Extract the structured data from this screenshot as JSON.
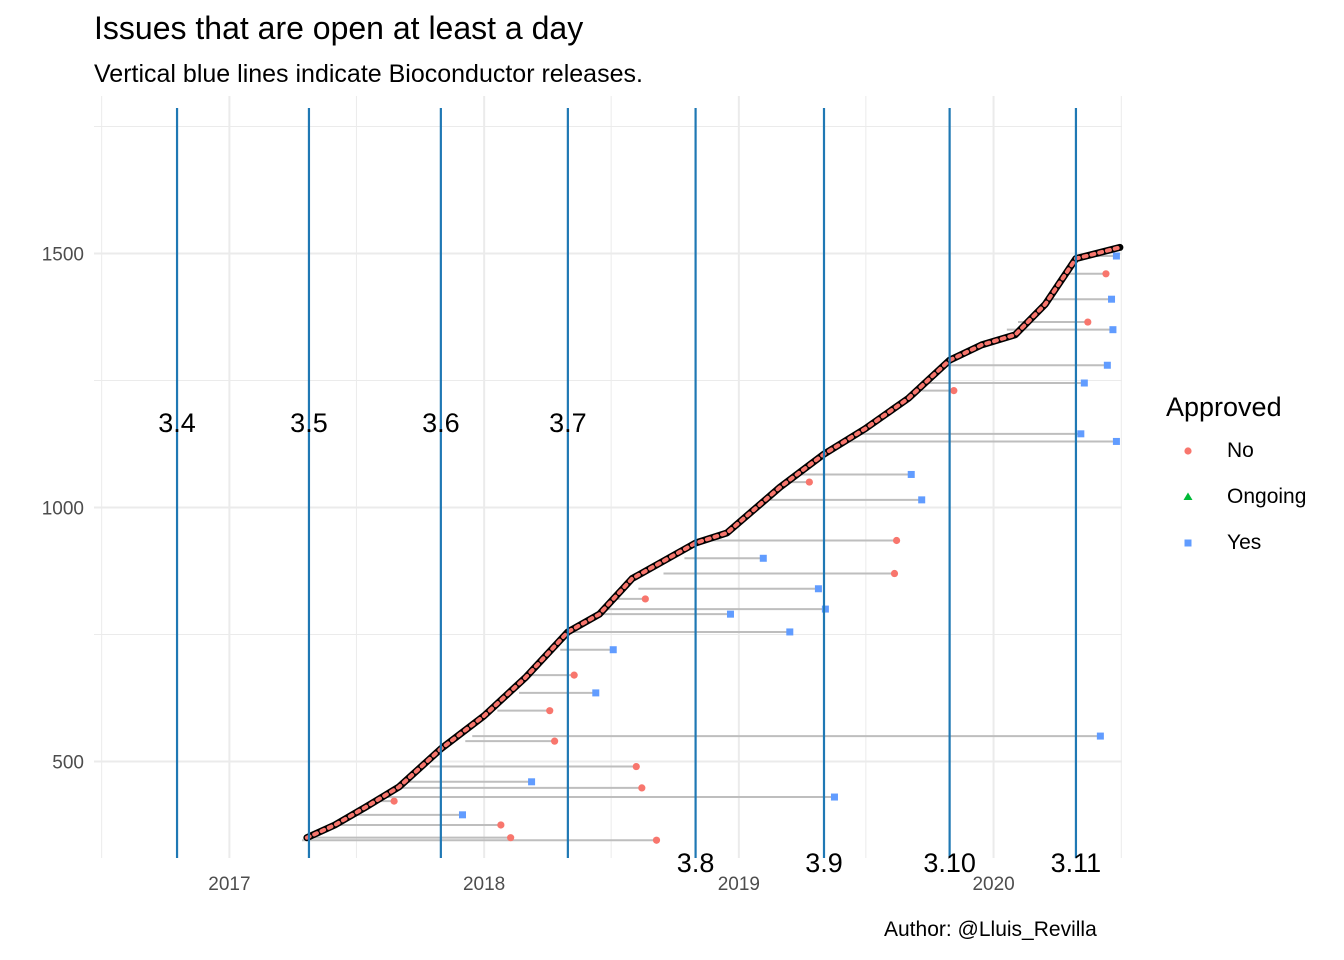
{
  "title": "Issues that are open at least a day",
  "subtitle": "Vertical blue lines indicate Bioconductor releases.",
  "caption": "Author: @Lluis_Revilla",
  "colors": {
    "no": "#F8766D",
    "ongoing": "#00BA38",
    "yes": "#619CFF",
    "release": "#1F78B4",
    "segment": "#BEBEBE",
    "open": "#000000",
    "grid": "#EBEBEB"
  },
  "legend": {
    "title": "Approved",
    "items": [
      {
        "label": "No",
        "shape": "circle",
        "color": "#F8766D"
      },
      {
        "label": "Ongoing",
        "shape": "triangle",
        "color": "#00BA38"
      },
      {
        "label": "Yes",
        "shape": "square",
        "color": "#619CFF"
      }
    ]
  },
  "chart_data": {
    "type": "scatter",
    "xlabel": "",
    "ylabel": "",
    "xlim": [
      "2016-06-21",
      "2020-07-03"
    ],
    "ylim": [
      310,
      1810
    ],
    "x_ticks": [
      "2017",
      "2018",
      "2019",
      "2020"
    ],
    "y_ticks": [
      500,
      1000,
      1500
    ],
    "grid": true,
    "legend_position": "right",
    "releases": [
      {
        "label": "3.4",
        "date": "2016-10-18"
      },
      {
        "label": "3.5",
        "date": "2017-04-25"
      },
      {
        "label": "3.6",
        "date": "2017-10-31"
      },
      {
        "label": "3.7",
        "date": "2018-05-01"
      },
      {
        "label": "3.8",
        "date": "2018-10-31"
      },
      {
        "label": "3.9",
        "date": "2019-05-03"
      },
      {
        "label": "3.10",
        "date": "2019-10-30"
      },
      {
        "label": "3.11",
        "date": "2020-04-28"
      }
    ],
    "opened_curve": [
      {
        "date": "2017-04-22",
        "issue": 350
      },
      {
        "date": "2017-06-01",
        "issue": 375
      },
      {
        "date": "2017-07-15",
        "issue": 410
      },
      {
        "date": "2017-09-01",
        "issue": 450
      },
      {
        "date": "2017-10-31",
        "issue": 525
      },
      {
        "date": "2018-01-01",
        "issue": 590
      },
      {
        "date": "2018-03-01",
        "issue": 665
      },
      {
        "date": "2018-05-01",
        "issue": 755
      },
      {
        "date": "2018-06-15",
        "issue": 790
      },
      {
        "date": "2018-08-01",
        "issue": 860
      },
      {
        "date": "2018-10-31",
        "issue": 930
      },
      {
        "date": "2018-12-15",
        "issue": 950
      },
      {
        "date": "2019-03-01",
        "issue": 1040
      },
      {
        "date": "2019-05-03",
        "issue": 1105
      },
      {
        "date": "2019-07-01",
        "issue": 1155
      },
      {
        "date": "2019-09-01",
        "issue": 1215
      },
      {
        "date": "2019-10-30",
        "issue": 1290
      },
      {
        "date": "2019-12-15",
        "issue": 1320
      },
      {
        "date": "2020-02-01",
        "issue": 1340
      },
      {
        "date": "2020-03-15",
        "issue": 1400
      },
      {
        "date": "2020-04-28",
        "issue": 1490
      },
      {
        "date": "2020-06-30",
        "issue": 1512
      }
    ],
    "series": [
      {
        "name": "No",
        "issues": [
          {
            "issue": 422,
            "opened": "2017-07-30",
            "closed": "2017-08-25"
          },
          {
            "issue": 350,
            "opened": "2017-04-22",
            "closed": "2018-02-08"
          },
          {
            "issue": 375,
            "opened": "2017-06-01",
            "closed": "2018-01-25"
          },
          {
            "issue": 448,
            "opened": "2017-08-30",
            "closed": "2018-08-15"
          },
          {
            "issue": 490,
            "opened": "2017-10-15",
            "closed": "2018-08-07"
          },
          {
            "issue": 345,
            "opened": "2017-04-15",
            "closed": "2018-09-05"
          },
          {
            "issue": 540,
            "opened": "2017-12-05",
            "closed": "2018-04-12"
          },
          {
            "issue": 600,
            "opened": "2018-01-20",
            "closed": "2018-04-05"
          },
          {
            "issue": 670,
            "opened": "2018-03-05",
            "closed": "2018-05-10"
          },
          {
            "issue": 820,
            "opened": "2018-07-01",
            "closed": "2018-08-20"
          },
          {
            "issue": 935,
            "opened": "2018-11-10",
            "closed": "2019-08-15"
          },
          {
            "issue": 870,
            "opened": "2018-09-15",
            "closed": "2019-08-12"
          },
          {
            "issue": 1050,
            "opened": "2019-03-05",
            "closed": "2019-04-12"
          },
          {
            "issue": 1230,
            "opened": "2019-09-20",
            "closed": "2019-11-05"
          },
          {
            "issue": 1365,
            "opened": "2020-02-05",
            "closed": "2020-05-15"
          },
          {
            "issue": 1460,
            "opened": "2020-04-15",
            "closed": "2020-06-10"
          }
        ]
      },
      {
        "name": "Ongoing",
        "issues": []
      },
      {
        "name": "Yes",
        "issues": [
          {
            "issue": 550,
            "opened": "2017-12-15",
            "closed": "2020-06-02"
          },
          {
            "issue": 430,
            "opened": "2017-08-05",
            "closed": "2019-05-18"
          },
          {
            "issue": 460,
            "opened": "2017-09-10",
            "closed": "2018-03-10"
          },
          {
            "issue": 395,
            "opened": "2017-06-20",
            "closed": "2017-12-01"
          },
          {
            "issue": 635,
            "opened": "2018-02-20",
            "closed": "2018-06-10"
          },
          {
            "issue": 720,
            "opened": "2018-04-20",
            "closed": "2018-07-05"
          },
          {
            "issue": 755,
            "opened": "2018-05-01",
            "closed": "2019-03-15"
          },
          {
            "issue": 790,
            "opened": "2018-06-15",
            "closed": "2018-12-20"
          },
          {
            "issue": 800,
            "opened": "2018-06-25",
            "closed": "2019-05-05"
          },
          {
            "issue": 840,
            "opened": "2018-08-10",
            "closed": "2019-04-25"
          },
          {
            "issue": 900,
            "opened": "2018-10-15",
            "closed": "2019-02-05"
          },
          {
            "issue": 1015,
            "opened": "2019-02-15",
            "closed": "2019-09-20"
          },
          {
            "issue": 1065,
            "opened": "2019-03-25",
            "closed": "2019-09-05"
          },
          {
            "issue": 1130,
            "opened": "2019-05-25",
            "closed": "2020-06-25"
          },
          {
            "issue": 1145,
            "opened": "2019-06-20",
            "closed": "2020-05-05"
          },
          {
            "issue": 1245,
            "opened": "2019-09-25",
            "closed": "2020-05-10"
          },
          {
            "issue": 1280,
            "opened": "2019-10-20",
            "closed": "2020-06-12"
          },
          {
            "issue": 1350,
            "opened": "2020-01-20",
            "closed": "2020-06-20"
          },
          {
            "issue": 1410,
            "opened": "2020-03-20",
            "closed": "2020-06-18"
          },
          {
            "issue": 1495,
            "opened": "2020-05-10",
            "closed": "2020-06-25"
          }
        ]
      }
    ]
  }
}
